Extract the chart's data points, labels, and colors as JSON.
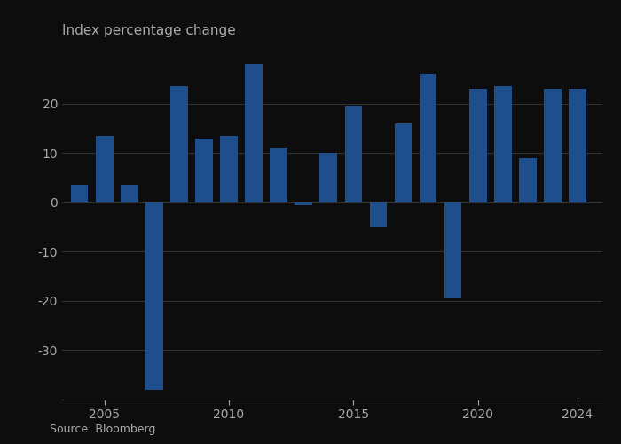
{
  "years": [
    2004,
    2005,
    2006,
    2007,
    2008,
    2009,
    2010,
    2011,
    2012,
    2013,
    2014,
    2015,
    2016,
    2017,
    2018,
    2019,
    2020,
    2021,
    2022,
    2023,
    2024
  ],
  "values": [
    3.5,
    13.5,
    3.5,
    -38.0,
    23.5,
    13.0,
    13.5,
    28.0,
    11.0,
    -0.5,
    10.0,
    19.5,
    -5.0,
    16.0,
    26.0,
    -19.5,
    23.0,
    23.5,
    9.0,
    23.0,
    23.0
  ],
  "bar_color": "#1f4e8c",
  "title": "Index percentage change",
  "source": "Source: Bloomberg",
  "xlim": [
    2003.3,
    2025.0
  ],
  "ylim": [
    -40,
    32
  ],
  "yticks": [
    -30,
    -20,
    -10,
    0,
    10,
    20
  ],
  "xticks": [
    2005,
    2010,
    2015,
    2020,
    2024
  ],
  "background_color": "#0d0d0d",
  "text_color": "#aaaaaa",
  "grid_color": "#3a3a3a",
  "bar_width": 0.7
}
